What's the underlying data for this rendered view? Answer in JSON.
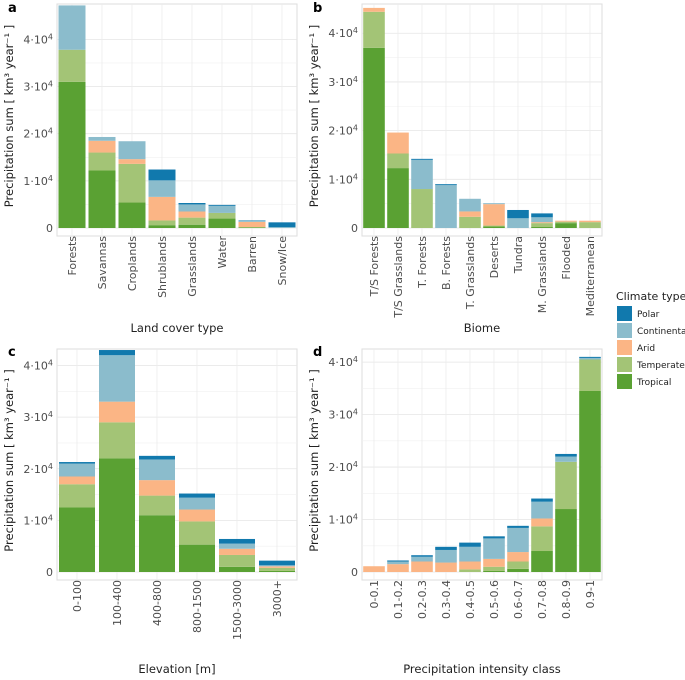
{
  "figure": {
    "legend": {
      "title": "Climate type",
      "items": [
        {
          "name": "Polar",
          "color": "#1179ad"
        },
        {
          "name": "Continental",
          "color": "#8bbccc"
        },
        {
          "name": "Arid",
          "color": "#fbb585"
        },
        {
          "name": "Temperate",
          "color": "#a3c476"
        },
        {
          "name": "Tropical",
          "color": "#5aa133"
        }
      ]
    }
  },
  "chart_data": [
    {
      "panel": "a",
      "type": "bar",
      "stacked": true,
      "xlabel": "Land cover type",
      "ylabel": "Precipitation sum [ km³ year⁻¹ ]",
      "ylim": [
        0,
        47500
      ],
      "yticks": [
        0,
        10000,
        20000,
        30000,
        40000
      ],
      "ytick_labels": [
        {
          "m": "0",
          "e": ""
        },
        {
          "m": "1·10",
          "e": "4"
        },
        {
          "m": "2·10",
          "e": "4"
        },
        {
          "m": "3·10",
          "e": "4"
        },
        {
          "m": "4·10",
          "e": "4"
        }
      ],
      "categories": [
        "Forests",
        "Savannas",
        "Croplands",
        "Shrublands",
        "Grasslands",
        "Water",
        "Barren",
        "Snow/Ice"
      ],
      "series": [
        {
          "name": "Tropical",
          "values": [
            31000,
            12200,
            5400,
            600,
            700,
            2000,
            100,
            0
          ]
        },
        {
          "name": "Temperate",
          "values": [
            6800,
            3800,
            8200,
            1000,
            1500,
            1200,
            100,
            0
          ]
        },
        {
          "name": "Arid",
          "values": [
            0,
            2500,
            1000,
            5000,
            1300,
            0,
            1100,
            0
          ]
        },
        {
          "name": "Continental",
          "values": [
            9400,
            800,
            3800,
            3500,
            1500,
            1500,
            200,
            200
          ]
        },
        {
          "name": "Polar",
          "values": [
            0,
            0,
            0,
            2300,
            300,
            200,
            100,
            1000
          ]
        }
      ]
    },
    {
      "panel": "b",
      "type": "bar",
      "stacked": true,
      "xlabel": "Biome",
      "ylabel": "Precipitation sum [ km³ year⁻¹ ]",
      "ylim": [
        0,
        46000
      ],
      "yticks": [
        0,
        10000,
        20000,
        30000,
        40000
      ],
      "ytick_labels": [
        {
          "m": "0",
          "e": ""
        },
        {
          "m": "1·10",
          "e": "4"
        },
        {
          "m": "2·10",
          "e": "4"
        },
        {
          "m": "3·10",
          "e": "4"
        },
        {
          "m": "4·10",
          "e": "4"
        }
      ],
      "categories": [
        "T/S Forests",
        "T/S Grasslands",
        "T. Forests",
        "B. Forests",
        "T. Grasslands",
        "Deserts",
        "Tundra",
        "M. Grasslands",
        "Flooded",
        "Mediterranean"
      ],
      "series": [
        {
          "name": "Tropical",
          "values": [
            37000,
            12300,
            0,
            0,
            0,
            300,
            0,
            200,
            1000,
            0
          ]
        },
        {
          "name": "Temperate",
          "values": [
            7400,
            3000,
            8000,
            0,
            2300,
            200,
            0,
            800,
            300,
            1200
          ]
        },
        {
          "name": "Arid",
          "values": [
            800,
            4300,
            0,
            0,
            1100,
            4400,
            0,
            200,
            200,
            300
          ]
        },
        {
          "name": "Continental",
          "values": [
            0,
            0,
            6000,
            8800,
            2600,
            200,
            2000,
            1000,
            0,
            0
          ]
        },
        {
          "name": "Polar",
          "values": [
            0,
            0,
            200,
            200,
            0,
            0,
            1700,
            800,
            0,
            0
          ]
        }
      ]
    },
    {
      "panel": "c",
      "type": "bar",
      "stacked": true,
      "xlabel": "Elevation [m]",
      "ylabel": "Precipitation sum [ km³ year⁻¹ ]",
      "ylim": [
        0,
        43200
      ],
      "yticks": [
        0,
        10000,
        20000,
        30000,
        40000
      ],
      "ytick_labels": [
        {
          "m": "0",
          "e": ""
        },
        {
          "m": "1·10",
          "e": "4"
        },
        {
          "m": "2·10",
          "e": "4"
        },
        {
          "m": "3·10",
          "e": "4"
        },
        {
          "m": "4·10",
          "e": "4"
        }
      ],
      "categories": [
        "0-100",
        "100-400",
        "400-800",
        "800-1500",
        "1500-3000",
        "3000+"
      ],
      "series": [
        {
          "name": "Tropical",
          "values": [
            12500,
            22000,
            11000,
            5300,
            1000,
            200
          ]
        },
        {
          "name": "Temperate",
          "values": [
            4500,
            7000,
            3800,
            4500,
            2300,
            600
          ]
        },
        {
          "name": "Arid",
          "values": [
            1500,
            4000,
            3000,
            2300,
            1200,
            300
          ]
        },
        {
          "name": "Continental",
          "values": [
            2500,
            9000,
            4000,
            2300,
            1000,
            200
          ]
        },
        {
          "name": "Polar",
          "values": [
            300,
            1000,
            700,
            800,
            900,
            900
          ]
        }
      ]
    },
    {
      "panel": "d",
      "type": "bar",
      "stacked": true,
      "xlabel": "Precipitation intensity class",
      "ylabel": "Precipitation sum [ km³ year⁻¹ ]",
      "ylim": [
        0,
        42500
      ],
      "yticks": [
        0,
        10000,
        20000,
        30000,
        40000
      ],
      "ytick_labels": [
        {
          "m": "0",
          "e": ""
        },
        {
          "m": "1·10",
          "e": "4"
        },
        {
          "m": "2·10",
          "e": "4"
        },
        {
          "m": "3·10",
          "e": "4"
        },
        {
          "m": "4·10",
          "e": "4"
        }
      ],
      "categories": [
        "0-0.1",
        "0.1-0.2",
        "0.2-0.3",
        "0.3-0.4",
        "0.4-0.5",
        "0.5-0.6",
        "0.6-0.7",
        "0.7-0.8",
        "0.8-0.9",
        "0.9-1"
      ],
      "series": [
        {
          "name": "Tropical",
          "values": [
            0,
            0,
            0,
            0,
            0,
            200,
            600,
            4000,
            12000,
            34500
          ]
        },
        {
          "name": "Temperate",
          "values": [
            0,
            0,
            0,
            0,
            500,
            800,
            1400,
            4700,
            9000,
            6000
          ]
        },
        {
          "name": "Arid",
          "values": [
            1100,
            1500,
            2000,
            1800,
            1500,
            1500,
            1800,
            1500,
            0,
            0
          ]
        },
        {
          "name": "Continental",
          "values": [
            0,
            500,
            900,
            2400,
            2800,
            3900,
            4600,
            3200,
            1000,
            300
          ]
        },
        {
          "name": "Polar",
          "values": [
            0,
            200,
            300,
            600,
            800,
            400,
            400,
            600,
            500,
            200
          ]
        }
      ]
    }
  ]
}
